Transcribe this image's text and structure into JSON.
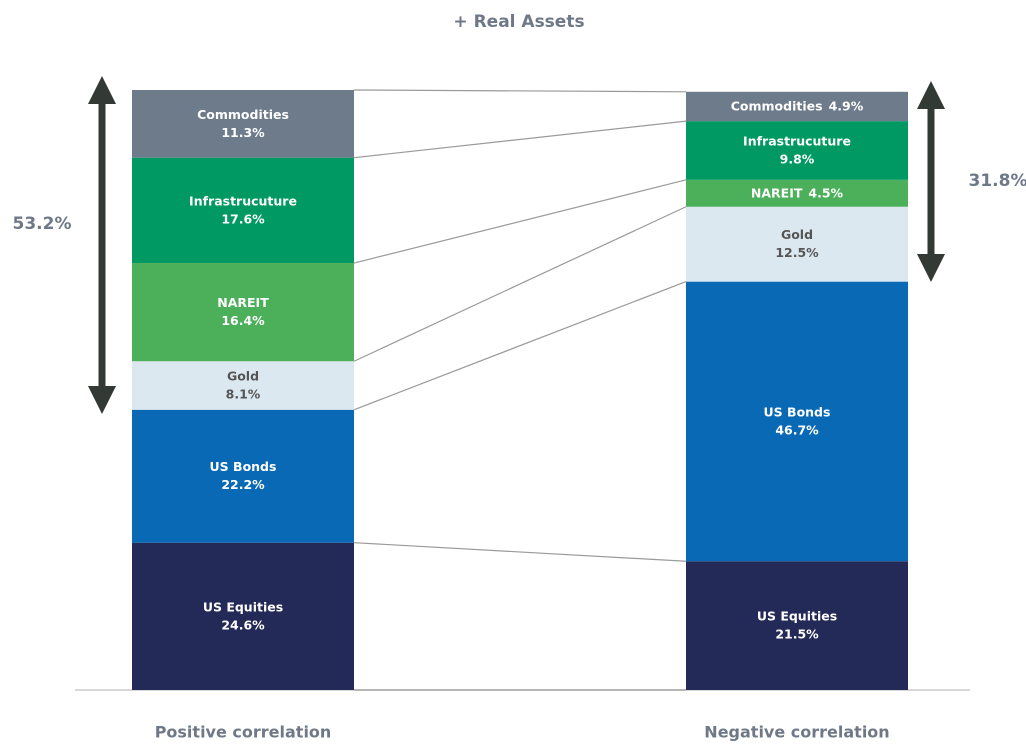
{
  "chart_data": {
    "type": "bar",
    "stacked": true,
    "title": "+ Real Assets",
    "categories": [
      "Positive correlation",
      "Negative correlation"
    ],
    "series": [
      {
        "name": "US Equities",
        "color": "#232a57",
        "text_color": "#ffffff",
        "values": [
          24.6,
          21.5
        ],
        "value_labels": [
          "24.6%",
          "21.5%"
        ]
      },
      {
        "name": "US Bonds",
        "color": "#0a69b5",
        "text_color": "#ffffff",
        "values": [
          22.2,
          46.7
        ],
        "value_labels": [
          "22.2%",
          "46.7%"
        ]
      },
      {
        "name": "Gold",
        "color": "#dce8f0",
        "text_color": "#555555",
        "values": [
          8.1,
          12.5
        ],
        "value_labels": [
          "8.1%",
          "12.5%"
        ]
      },
      {
        "name": "NAREIT",
        "color": "#4caf5a",
        "text_color": "#ffffff",
        "values": [
          16.4,
          4.5
        ],
        "value_labels": [
          "16.4%",
          "4.5%"
        ]
      },
      {
        "name": "Infrastrucuture",
        "color": "#009964",
        "text_color": "#ffffff",
        "values": [
          17.6,
          9.8
        ],
        "value_labels": [
          "17.6%",
          "9.8%"
        ]
      },
      {
        "name": "Commodities",
        "color": "#6e7b8b",
        "text_color": "#ffffff",
        "values": [
          11.3,
          4.9
        ],
        "value_labels": [
          "11.3%",
          "4.9%"
        ]
      }
    ],
    "annotations": [
      "53.2%",
      "31.8%"
    ]
  }
}
